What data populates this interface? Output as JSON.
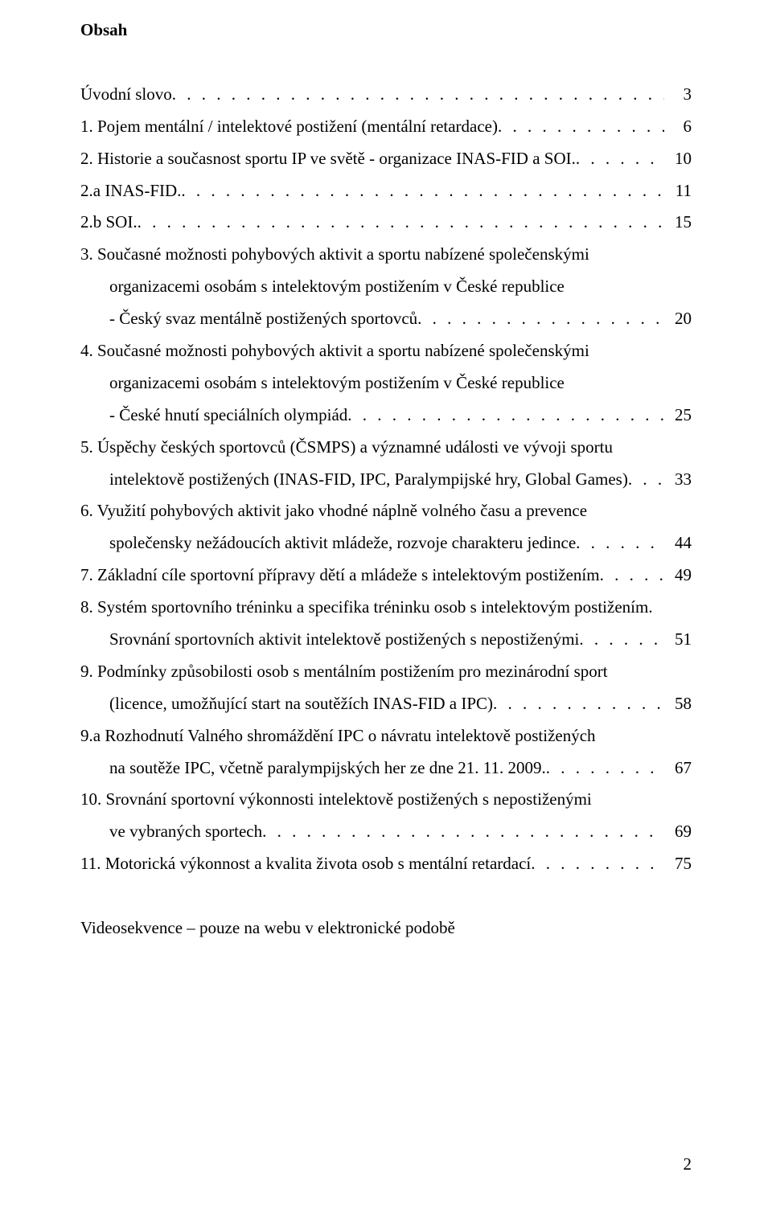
{
  "heading": "Obsah",
  "dots_placeholder": "",
  "entries": [
    {
      "lines": [
        {
          "text": "Úvodní slovo",
          "indent": false,
          "dots": true,
          "page": "3"
        }
      ]
    },
    {
      "lines": [
        {
          "text": "1. Pojem mentální / intelektové postižení (mentální retardace)",
          "indent": false,
          "dots": true,
          "page": "6"
        }
      ]
    },
    {
      "lines": [
        {
          "text": "2. Historie a současnost sportu IP ve světě - organizace INAS-FID a SOI.",
          "indent": false,
          "dots": true,
          "page": "10"
        }
      ]
    },
    {
      "lines": [
        {
          "text": "2.a INAS-FID.",
          "indent": false,
          "dots": true,
          "page": "11"
        }
      ]
    },
    {
      "lines": [
        {
          "text": "2.b SOI.",
          "indent": false,
          "dots": true,
          "page": "15"
        }
      ]
    },
    {
      "lines": [
        {
          "text": "3. Současné možnosti pohybových aktivit a sportu nabízené společenskými",
          "indent": false,
          "dots": false,
          "page": ""
        },
        {
          "text": "organizacemi osobám s intelektovým postižením v České republice",
          "indent": true,
          "dots": false,
          "page": ""
        },
        {
          "text": "- Český svaz mentálně postižených sportovců",
          "indent": true,
          "dots": true,
          "page": "20"
        }
      ]
    },
    {
      "lines": [
        {
          "text": "4. Současné možnosti pohybových aktivit a sportu nabízené společenskými",
          "indent": false,
          "dots": false,
          "page": ""
        },
        {
          "text": "organizacemi osobám s intelektovým postižením v České republice",
          "indent": true,
          "dots": false,
          "page": ""
        },
        {
          "text": "- České hnutí speciálních olympiád",
          "indent": true,
          "dots": true,
          "page": "25"
        }
      ]
    },
    {
      "lines": [
        {
          "text": "5. Úspěchy českých sportovců (ČSMPS) a významné události ve vývoji sportu",
          "indent": false,
          "dots": false,
          "page": ""
        },
        {
          "text": "intelektově postižených (INAS-FID, IPC, Paralympijské hry, Global Games)",
          "indent": true,
          "dots": true,
          "page": "33"
        }
      ]
    },
    {
      "lines": [
        {
          "text": "6. Využití pohybových aktivit jako vhodné náplně volného času a prevence",
          "indent": false,
          "dots": false,
          "page": ""
        },
        {
          "text": "společensky nežádoucích aktivit mládeže, rozvoje charakteru jedince",
          "indent": true,
          "dots": true,
          "page": "44"
        }
      ]
    },
    {
      "lines": [
        {
          "text": "7. Základní cíle sportovní přípravy dětí a mládeže s intelektovým postižením",
          "indent": false,
          "dots": true,
          "page": "49"
        }
      ]
    },
    {
      "lines": [
        {
          "text": "8. Systém sportovního tréninku a specifika tréninku osob s intelektovým postižením.",
          "indent": false,
          "dots": false,
          "page": ""
        },
        {
          "text": "Srovnání sportovních aktivit intelektově postižených s nepostiženými ",
          "indent": true,
          "dots": true,
          "page": "51"
        }
      ]
    },
    {
      "lines": [
        {
          "text": "9. Podmínky způsobilosti osob s mentálním postižením pro mezinárodní sport",
          "indent": false,
          "dots": false,
          "page": ""
        },
        {
          "text": "(licence, umožňující start na soutěžích INAS-FID a IPC) ",
          "indent": true,
          "dots": true,
          "page": "58"
        }
      ]
    },
    {
      "lines": [
        {
          "text": "9.a Rozhodnutí Valného shromáždění IPC o návratu intelektově postižených",
          "indent": false,
          "dots": false,
          "page": ""
        },
        {
          "text": "na soutěže IPC, včetně paralympijských her ze dne 21. 11. 2009.",
          "indent": true,
          "dots": true,
          "page": "67"
        }
      ]
    },
    {
      "lines": [
        {
          "text": "10. Srovnání sportovní výkonnosti intelektově postižených s nepostiženými",
          "indent": false,
          "dots": false,
          "page": ""
        },
        {
          "text": "ve vybraných sportech",
          "indent": true,
          "dots": true,
          "page": "69"
        }
      ]
    },
    {
      "lines": [
        {
          "text": "11. Motorická výkonnost a kvalita života osob s mentální retardací",
          "indent": false,
          "dots": true,
          "page": "75"
        }
      ]
    }
  ],
  "footnote": "Videosekvence – pouze na webu v elektronické podobě",
  "page_number": "2"
}
